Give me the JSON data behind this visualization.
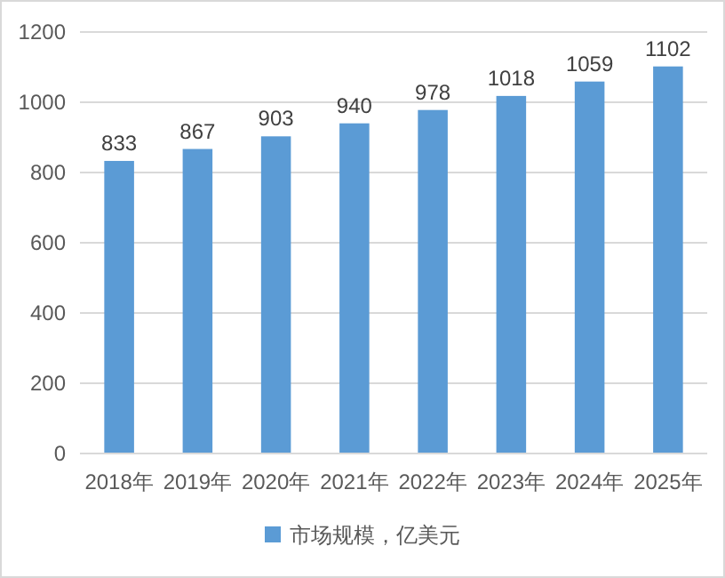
{
  "chart_data": {
    "type": "bar",
    "categories": [
      "2018年",
      "2019年",
      "2020年",
      "2021年",
      "2022年",
      "2023年",
      "2024年",
      "2025年"
    ],
    "series": [
      {
        "name": "市场规模，亿美元",
        "color": "#5b9bd5",
        "values": [
          833,
          867,
          903,
          940,
          978,
          1018,
          1059,
          1102
        ]
      }
    ],
    "ylim": [
      0,
      1200
    ],
    "yticks": [
      0,
      200,
      400,
      600,
      800,
      1000,
      1200
    ],
    "grid": "y",
    "legend": "bottom",
    "data_labels": true
  }
}
